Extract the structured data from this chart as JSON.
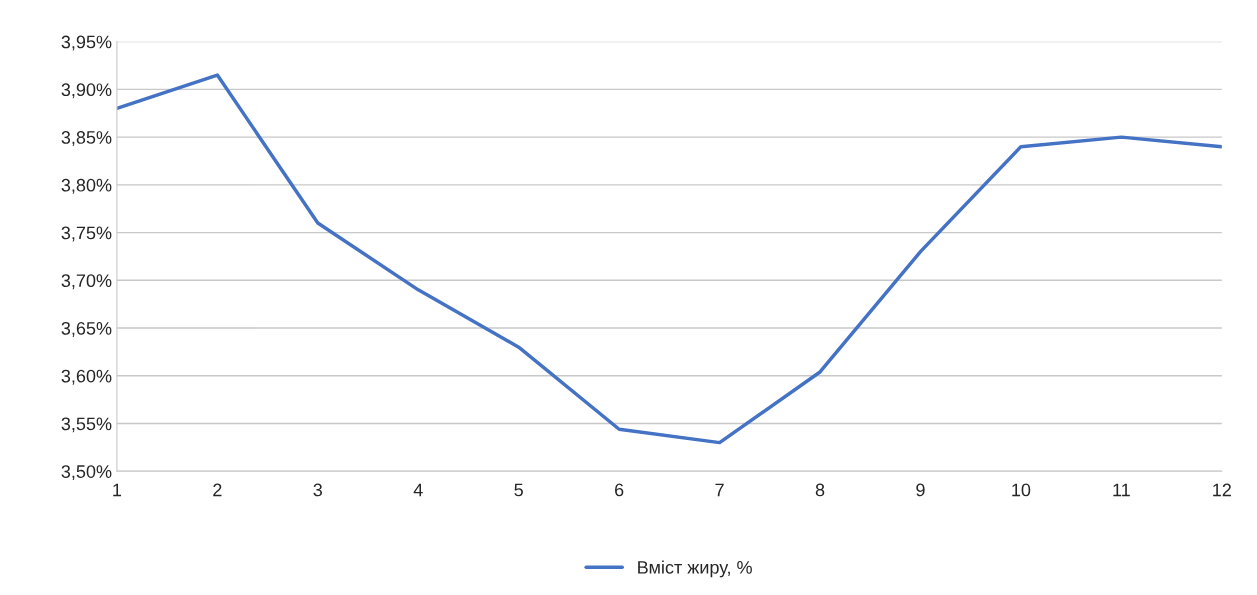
{
  "chart_data": {
    "type": "line",
    "categories": [
      "1",
      "2",
      "3",
      "4",
      "5",
      "6",
      "7",
      "8",
      "9",
      "10",
      "11",
      "12"
    ],
    "series": [
      {
        "name": "Вміст жиру, %",
        "color": "#4472c4",
        "values": [
          3.88,
          3.915,
          3.76,
          3.69,
          3.63,
          3.544,
          3.53,
          3.604,
          3.73,
          3.84,
          3.85,
          3.84
        ]
      }
    ],
    "ylim": [
      3.5,
      3.95
    ],
    "yticks": [
      {
        "value": 3.5,
        "label": "3,50%"
      },
      {
        "value": 3.55,
        "label": "3,55%"
      },
      {
        "value": 3.6,
        "label": "3,60%"
      },
      {
        "value": 3.65,
        "label": "3,65%"
      },
      {
        "value": 3.7,
        "label": "3,70%"
      },
      {
        "value": 3.75,
        "label": "3,75%"
      },
      {
        "value": 3.8,
        "label": "3,80%"
      },
      {
        "value": 3.85,
        "label": "3,85%"
      },
      {
        "value": 3.9,
        "label": "3,90%"
      },
      {
        "value": 3.95,
        "label": "3,95%"
      }
    ],
    "grid": "y",
    "legend": "bottom",
    "marker": "none",
    "line_style": "solid"
  }
}
